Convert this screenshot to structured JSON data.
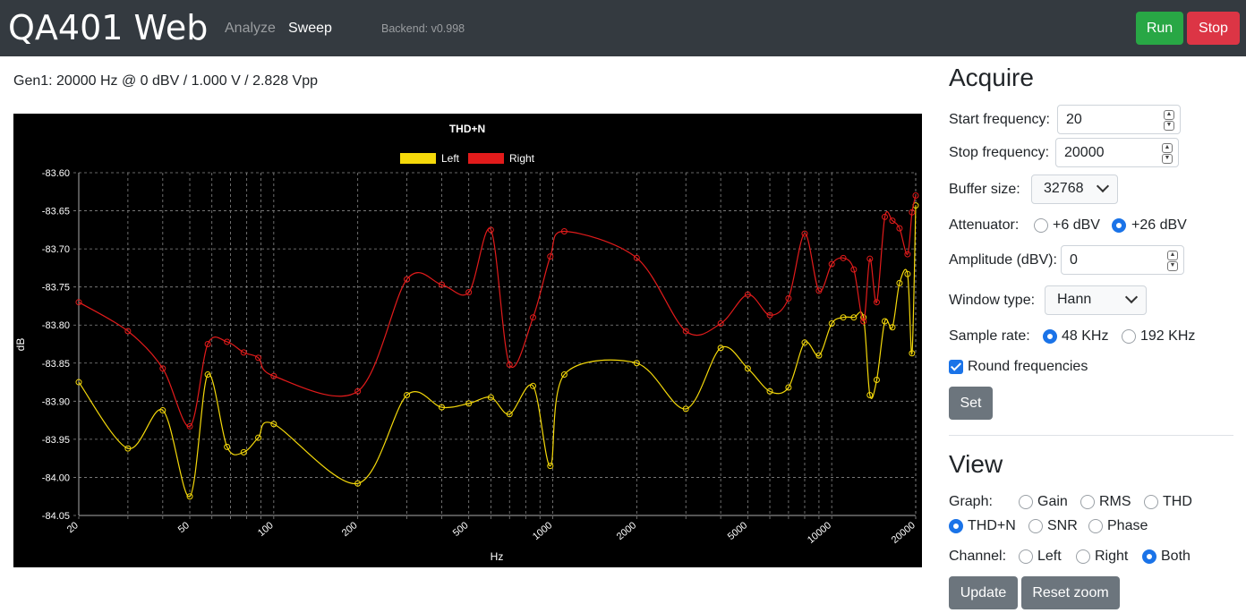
{
  "app": {
    "title": "QA401 Web",
    "nav": {
      "analyze": "Analyze",
      "sweep": "Sweep"
    },
    "backend": "Backend: v0.998",
    "run_label": "Run",
    "stop_label": "Stop"
  },
  "gen_info": "Gen1: 20000 Hz @ 0 dBV / 1.000 V / 2.828 Vpp",
  "acquire": {
    "heading": "Acquire",
    "start_freq_label": "Start frequency:",
    "start_freq_value": "20",
    "stop_freq_label": "Stop frequency:",
    "stop_freq_value": "20000",
    "buffer_label": "Buffer size:",
    "buffer_value": "32768",
    "attenuator_label": "Attenuator:",
    "attenuator_options": [
      "+6 dBV",
      "+26 dBV"
    ],
    "attenuator_selected": "+26 dBV",
    "amplitude_label": "Amplitude (dBV):",
    "amplitude_value": "0",
    "window_label": "Window type:",
    "window_value": "Hann",
    "sample_rate_label": "Sample rate:",
    "sample_rate_options": [
      "48 KHz",
      "192 KHz"
    ],
    "sample_rate_selected": "48 KHz",
    "round_label": "Round frequencies",
    "round_checked": true,
    "set_label": "Set"
  },
  "view": {
    "heading": "View",
    "graph_label": "Graph:",
    "graph_options": [
      "Gain",
      "RMS",
      "THD",
      "THD+N",
      "SNR",
      "Phase"
    ],
    "graph_selected": "THD+N",
    "channel_label": "Channel:",
    "channel_options": [
      "Left",
      "Right",
      "Both"
    ],
    "channel_selected": "Both",
    "update_label": "Update",
    "reset_zoom_label": "Reset zoom"
  },
  "chart_data": {
    "type": "line",
    "title": "THD+N",
    "xlabel": "Hz",
    "ylabel": "dB",
    "x_scale": "log",
    "xlim": [
      20,
      20000
    ],
    "ylim": [
      -84.05,
      -83.6
    ],
    "y_ticks": [
      "-83.60",
      "-83.65",
      "-83.70",
      "-83.75",
      "-83.80",
      "-83.85",
      "-83.90",
      "-83.95",
      "-84.00",
      "-84.05"
    ],
    "x_ticks": [
      {
        "v": 20,
        "l": "20"
      },
      {
        "v": 50,
        "l": "50"
      },
      {
        "v": 100,
        "l": "100"
      },
      {
        "v": 200,
        "l": "200"
      },
      {
        "v": 500,
        "l": "500"
      },
      {
        "v": 1000,
        "l": "1000"
      },
      {
        "v": 2000,
        "l": "2000"
      },
      {
        "v": 5000,
        "l": "5000"
      },
      {
        "v": 10000,
        "l": "10000"
      },
      {
        "v": 20000,
        "l": "20000"
      }
    ],
    "legend_position": "top",
    "grid": true,
    "series": [
      {
        "name": "Left",
        "color": "#f5d90a",
        "points": [
          [
            20,
            -83.875
          ],
          [
            30,
            -83.962
          ],
          [
            40,
            -83.912
          ],
          [
            50,
            -84.025
          ],
          [
            58,
            -83.865
          ],
          [
            68,
            -83.96
          ],
          [
            78,
            -83.967
          ],
          [
            88,
            -83.948
          ],
          [
            100,
            -83.93
          ],
          [
            200,
            -84.008
          ],
          [
            300,
            -83.892
          ],
          [
            400,
            -83.908
          ],
          [
            500,
            -83.903
          ],
          [
            600,
            -83.895
          ],
          [
            700,
            -83.917
          ],
          [
            850,
            -83.88
          ],
          [
            980,
            -83.985
          ],
          [
            1100,
            -83.865
          ],
          [
            2000,
            -83.85
          ],
          [
            3000,
            -83.91
          ],
          [
            4000,
            -83.83
          ],
          [
            5000,
            -83.857
          ],
          [
            6000,
            -83.887
          ],
          [
            7000,
            -83.882
          ],
          [
            8000,
            -83.823
          ],
          [
            9000,
            -83.84
          ],
          [
            10000,
            -83.798
          ],
          [
            11000,
            -83.79
          ],
          [
            12000,
            -83.79
          ],
          [
            13000,
            -83.79
          ],
          [
            13700,
            -83.892
          ],
          [
            14500,
            -83.872
          ],
          [
            15500,
            -83.795
          ],
          [
            16500,
            -83.803
          ],
          [
            17500,
            -83.745
          ],
          [
            18700,
            -83.733
          ],
          [
            19400,
            -83.837
          ],
          [
            20000,
            -83.643
          ]
        ]
      },
      {
        "name": "Right",
        "color": "#e21b1b",
        "points": [
          [
            20,
            -83.77
          ],
          [
            30,
            -83.808
          ],
          [
            40,
            -83.857
          ],
          [
            50,
            -83.933
          ],
          [
            58,
            -83.825
          ],
          [
            68,
            -83.822
          ],
          [
            78,
            -83.836
          ],
          [
            88,
            -83.843
          ],
          [
            100,
            -83.867
          ],
          [
            200,
            -83.887
          ],
          [
            300,
            -83.74
          ],
          [
            400,
            -83.747
          ],
          [
            500,
            -83.757
          ],
          [
            600,
            -83.675
          ],
          [
            700,
            -83.852
          ],
          [
            850,
            -83.79
          ],
          [
            980,
            -83.71
          ],
          [
            1100,
            -83.677
          ],
          [
            2000,
            -83.712
          ],
          [
            3000,
            -83.808
          ],
          [
            4000,
            -83.798
          ],
          [
            5000,
            -83.76
          ],
          [
            6000,
            -83.787
          ],
          [
            7000,
            -83.765
          ],
          [
            8000,
            -83.68
          ],
          [
            9000,
            -83.755
          ],
          [
            10000,
            -83.72
          ],
          [
            11000,
            -83.712
          ],
          [
            12000,
            -83.727
          ],
          [
            13000,
            -83.795
          ],
          [
            13700,
            -83.713
          ],
          [
            14500,
            -83.77
          ],
          [
            15500,
            -83.658
          ],
          [
            16500,
            -83.663
          ],
          [
            17500,
            -83.673
          ],
          [
            18700,
            -83.707
          ],
          [
            19400,
            -83.652
          ],
          [
            20000,
            -83.63
          ]
        ]
      }
    ]
  }
}
